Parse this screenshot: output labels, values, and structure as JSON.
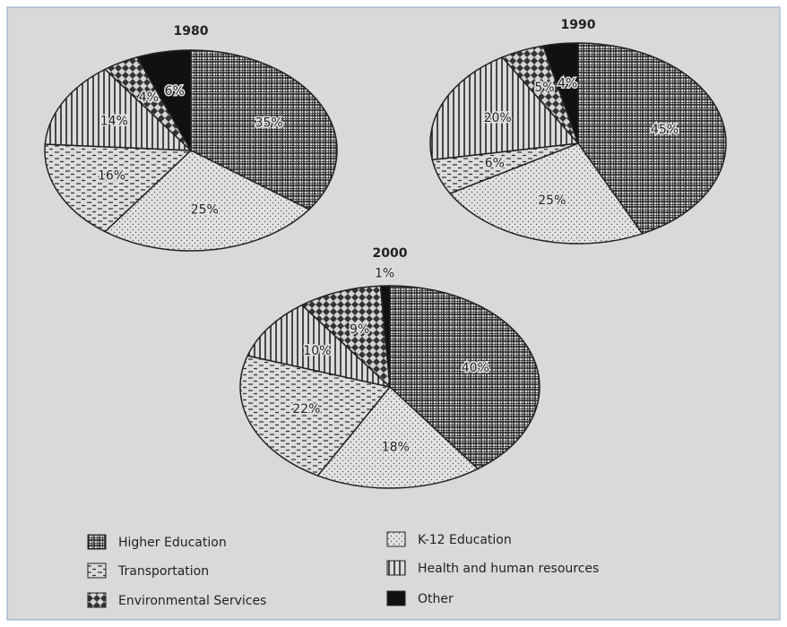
{
  "chart_data": [
    {
      "type": "pie",
      "title": "1980",
      "categories": [
        "Higher Education",
        "K-12 Education",
        "Transportation",
        "Health and human resources",
        "Environmental Services",
        "Other"
      ],
      "values": [
        35,
        25,
        16,
        14,
        4,
        6
      ],
      "value_labels": [
        "35%",
        "25%",
        "16%",
        "14%",
        "4%",
        "6%"
      ]
    },
    {
      "type": "pie",
      "title": "1990",
      "categories": [
        "Higher Education",
        "K-12 Education",
        "Transportation",
        "Health and human resources",
        "Environmental Services",
        "Other"
      ],
      "values": [
        45,
        25,
        6,
        20,
        5,
        4
      ],
      "value_labels": [
        "45%",
        "25%",
        "6%",
        "20%",
        "5%",
        "4%"
      ]
    },
    {
      "type": "pie",
      "title": "2000",
      "categories": [
        "Higher Education",
        "K-12 Education",
        "Transportation",
        "Health and human resources",
        "Environmental Services",
        "Other"
      ],
      "values": [
        40,
        18,
        22,
        10,
        9,
        1
      ],
      "value_labels": [
        "40%",
        "18%",
        "22%",
        "10%",
        "9%",
        "1%"
      ]
    }
  ]
}
